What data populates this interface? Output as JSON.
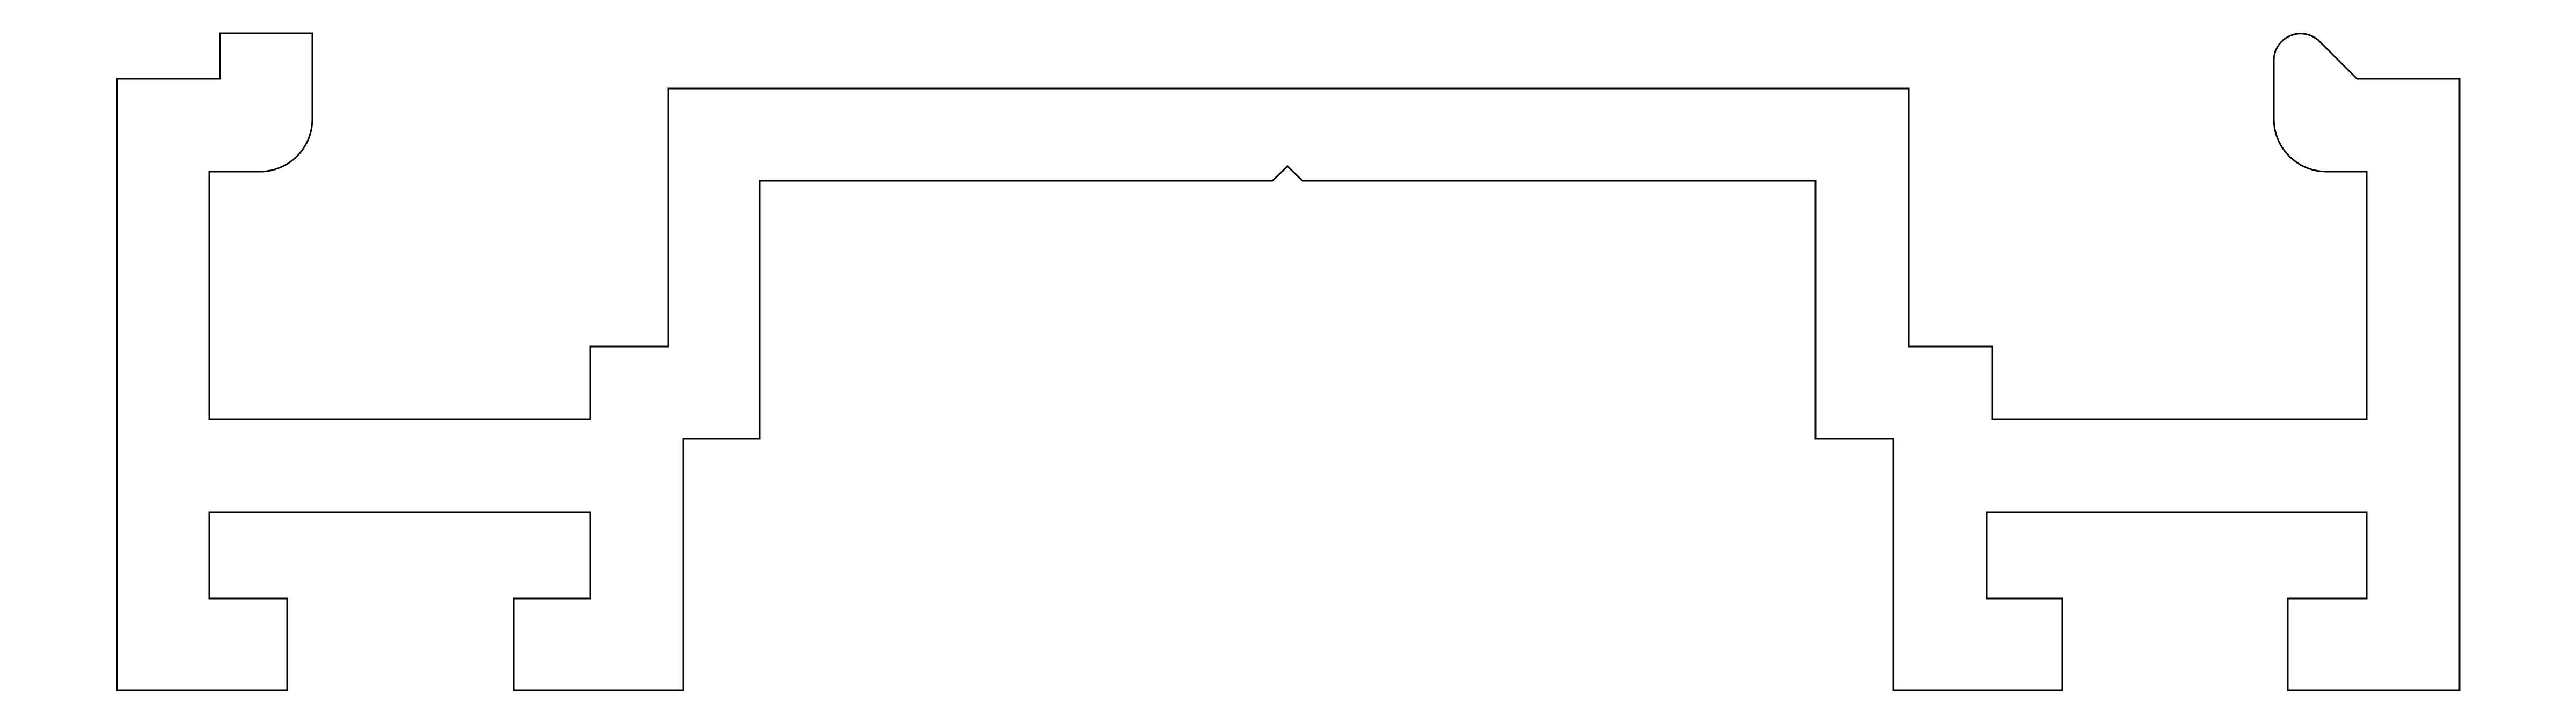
{
  "diagram": {
    "kind": "extrusion-profile-cross-section",
    "colors": {
      "background": "#ffffff",
      "stroke": "#000000"
    }
  }
}
